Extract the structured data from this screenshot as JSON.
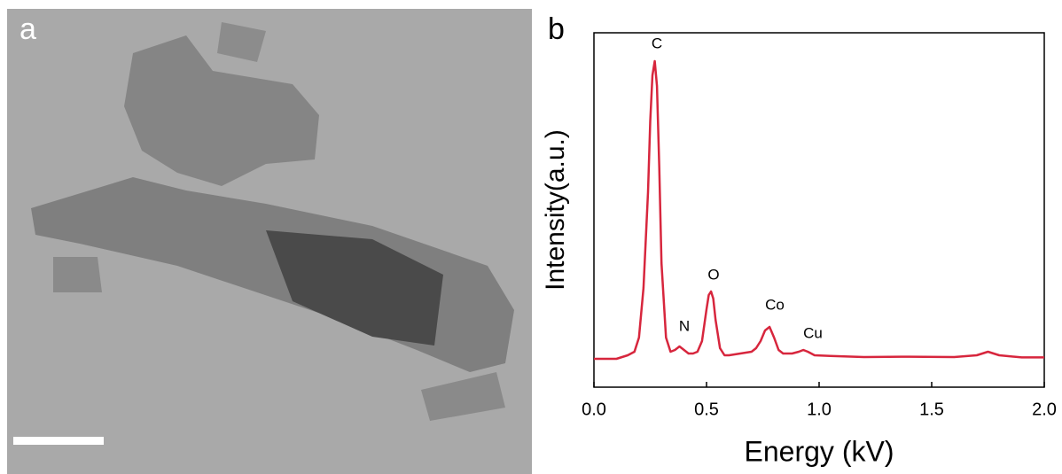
{
  "panel_labels": [
    "a",
    "b"
  ],
  "chart_data": {
    "type": "line",
    "xlabel": "Energy (kV)",
    "ylabel": "Intensity(a.u.)",
    "x": [
      0,
      0.1,
      0.15,
      0.18,
      0.2,
      0.22,
      0.24,
      0.25,
      0.26,
      0.27,
      0.28,
      0.29,
      0.3,
      0.32,
      0.34,
      0.36,
      0.38,
      0.4,
      0.42,
      0.44,
      0.46,
      0.48,
      0.5,
      0.51,
      0.52,
      0.53,
      0.54,
      0.56,
      0.58,
      0.6,
      0.65,
      0.7,
      0.72,
      0.74,
      0.76,
      0.78,
      0.8,
      0.82,
      0.84,
      0.88,
      0.91,
      0.93,
      0.95,
      0.98,
      1.05,
      1.2,
      1.4,
      1.6,
      1.7,
      1.75,
      1.8,
      1.9,
      2.0
    ],
    "values": [
      8,
      8,
      9,
      10,
      14,
      28,
      55,
      75,
      88,
      92,
      85,
      62,
      35,
      14,
      10,
      10.5,
      11.5,
      10.5,
      9.5,
      9.5,
      10,
      13,
      22,
      26,
      27,
      25,
      19,
      11,
      9,
      9,
      9.5,
      10,
      11,
      13,
      16,
      17,
      14,
      10.5,
      9.5,
      9.5,
      10,
      10.5,
      10,
      9,
      8.8,
      8.5,
      8.6,
      8.5,
      9,
      10,
      9,
      8.4,
      8.4
    ],
    "color": "#d7263d",
    "annotations": [
      "C",
      "N",
      "O",
      "Co",
      "Cu"
    ],
    "xlim": [
      0,
      2
    ],
    "ylim": [
      0,
      100
    ],
    "xticks": [
      {
        "value": 0,
        "label": "0.0"
      },
      0.5,
      {
        "value": 1,
        "label": "1.0"
      },
      1.5,
      {
        "value": 2,
        "label": "2.0"
      }
    ]
  }
}
